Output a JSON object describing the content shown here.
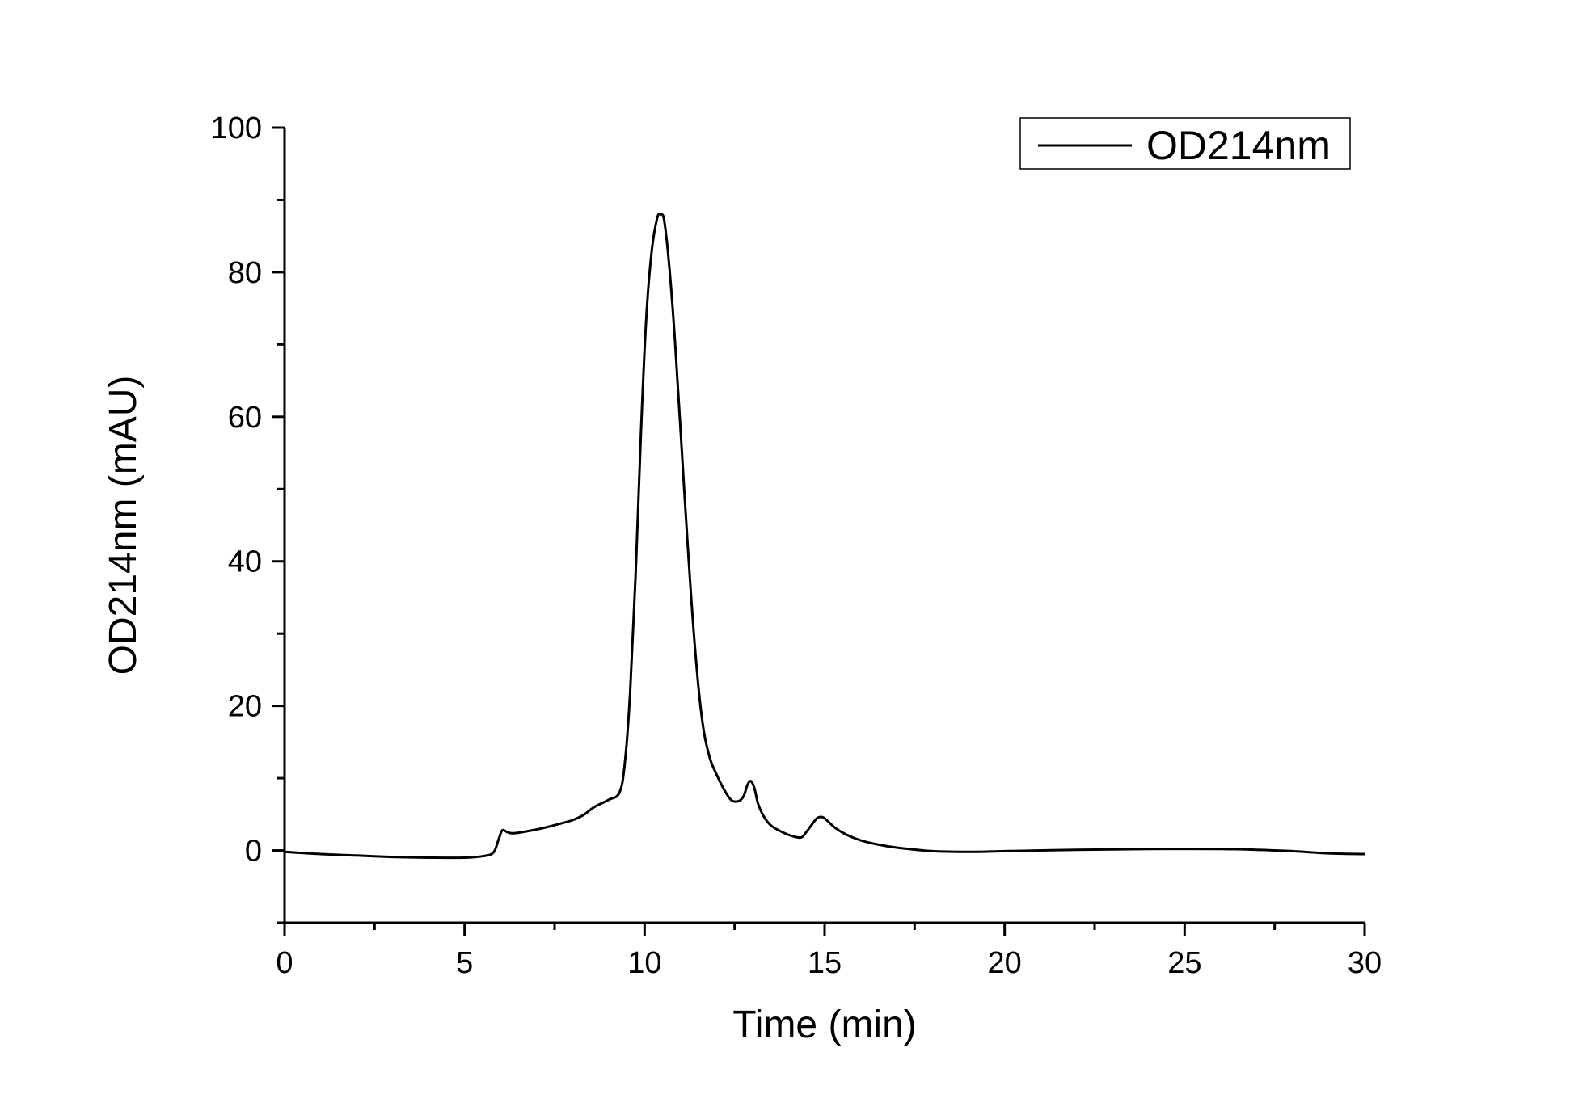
{
  "chart_data": {
    "type": "line",
    "title": "",
    "xlabel": "Time (min)",
    "ylabel": "OD214nm (mAU)",
    "xlim": [
      0,
      30
    ],
    "ylim": [
      -10,
      100
    ],
    "xticks": [
      0,
      5,
      10,
      15,
      20,
      25,
      30
    ],
    "xtick_labels": [
      "0",
      "5",
      "10",
      "15",
      "20",
      "25",
      "30"
    ],
    "yticks": [
      0,
      20,
      40,
      60,
      80,
      100
    ],
    "ytick_labels": [
      "0",
      "20",
      "40",
      "60",
      "80",
      "100"
    ],
    "grid": false,
    "legend": {
      "position": "top-right",
      "entries": [
        "OD214nm"
      ]
    },
    "series": [
      {
        "name": "OD214nm",
        "color": "#000000",
        "x": [
          0,
          1,
          2,
          3,
          4,
          5,
          5.5,
          5.8,
          5.95,
          6.05,
          6.2,
          6.4,
          7,
          7.5,
          8,
          8.3,
          8.6,
          9,
          9.3,
          9.45,
          9.6,
          9.75,
          9.9,
          10.05,
          10.2,
          10.35,
          10.45,
          10.55,
          10.7,
          10.85,
          11,
          11.2,
          11.4,
          11.6,
          11.8,
          12,
          12.2,
          12.4,
          12.6,
          12.75,
          12.85,
          12.95,
          13.05,
          13.15,
          13.3,
          13.5,
          13.8,
          14.1,
          14.35,
          14.5,
          14.65,
          14.8,
          14.95,
          15.1,
          15.3,
          15.6,
          16,
          16.5,
          17,
          18,
          19,
          20,
          22,
          24,
          26,
          27,
          28,
          29,
          30
        ],
        "y": [
          -0.2,
          -0.5,
          -0.7,
          -0.9,
          -1.0,
          -1.0,
          -0.8,
          -0.3,
          1.6,
          2.8,
          2.5,
          2.4,
          2.9,
          3.5,
          4.2,
          4.9,
          6.0,
          7.0,
          8.0,
          12.0,
          22.0,
          38.0,
          58.0,
          74.0,
          83.0,
          87.5,
          88.0,
          87.0,
          80.0,
          70.0,
          58.0,
          42.0,
          28.0,
          18.0,
          13.0,
          10.5,
          8.5,
          7.0,
          6.8,
          7.5,
          9.0,
          9.6,
          8.6,
          6.5,
          4.8,
          3.5,
          2.6,
          2.0,
          1.8,
          2.6,
          3.6,
          4.5,
          4.6,
          4.0,
          3.1,
          2.2,
          1.4,
          0.8,
          0.4,
          -0.1,
          -0.2,
          -0.1,
          0.1,
          0.2,
          0.2,
          0.1,
          -0.1,
          -0.4,
          -0.5
        ]
      }
    ]
  }
}
